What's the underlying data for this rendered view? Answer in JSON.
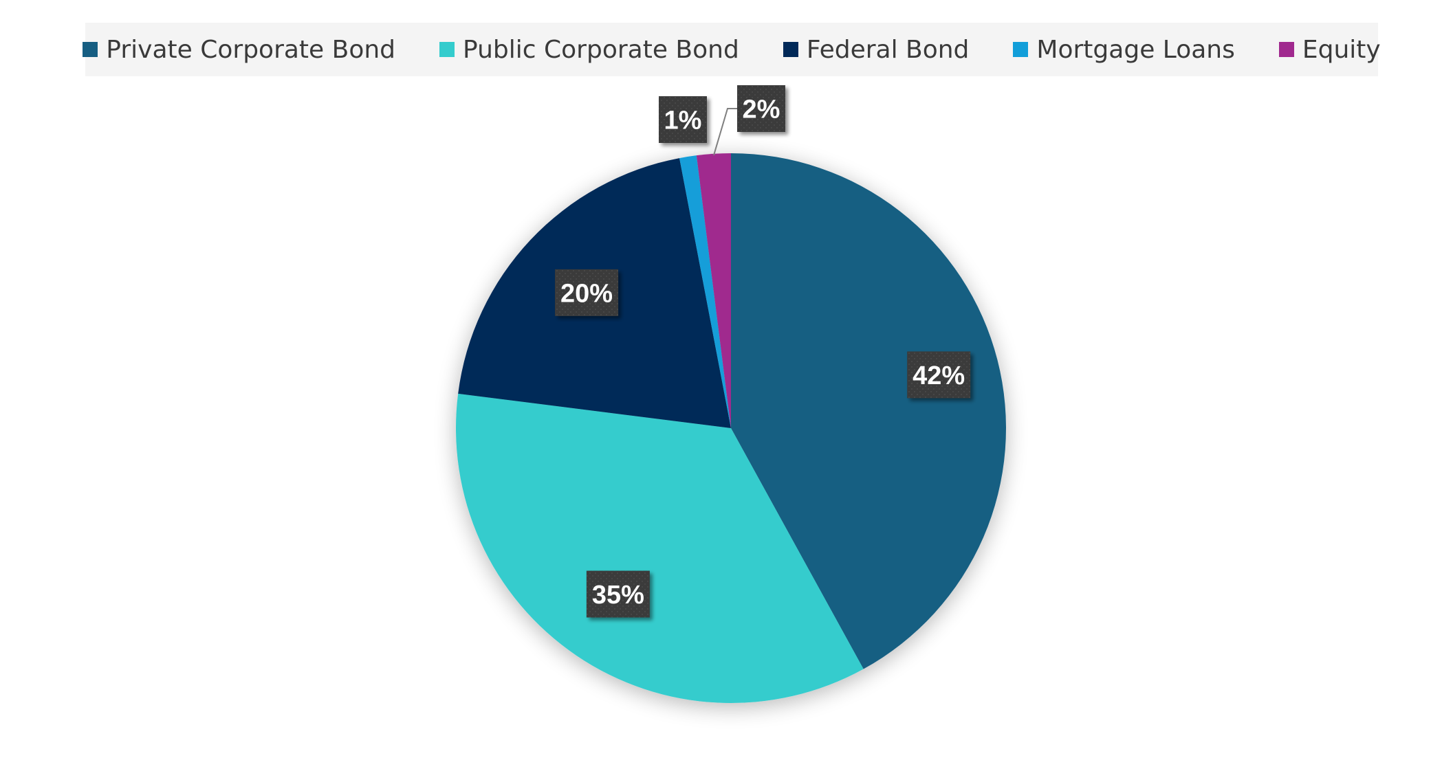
{
  "chart_data": {
    "type": "pie",
    "title": "",
    "legend_position": "top",
    "categories": [
      "Private Corporate Bond",
      "Public Corporate Bond",
      "Federal Bond",
      "Mortgage Loans",
      "Equity"
    ],
    "values": [
      42,
      35,
      20,
      1,
      2
    ],
    "labels": [
      "42%",
      "35%",
      "20%",
      "1%",
      "2%"
    ],
    "colors": [
      "#165E82",
      "#34CCCD",
      "#012958",
      "#129ED9",
      "#A0298E"
    ]
  }
}
